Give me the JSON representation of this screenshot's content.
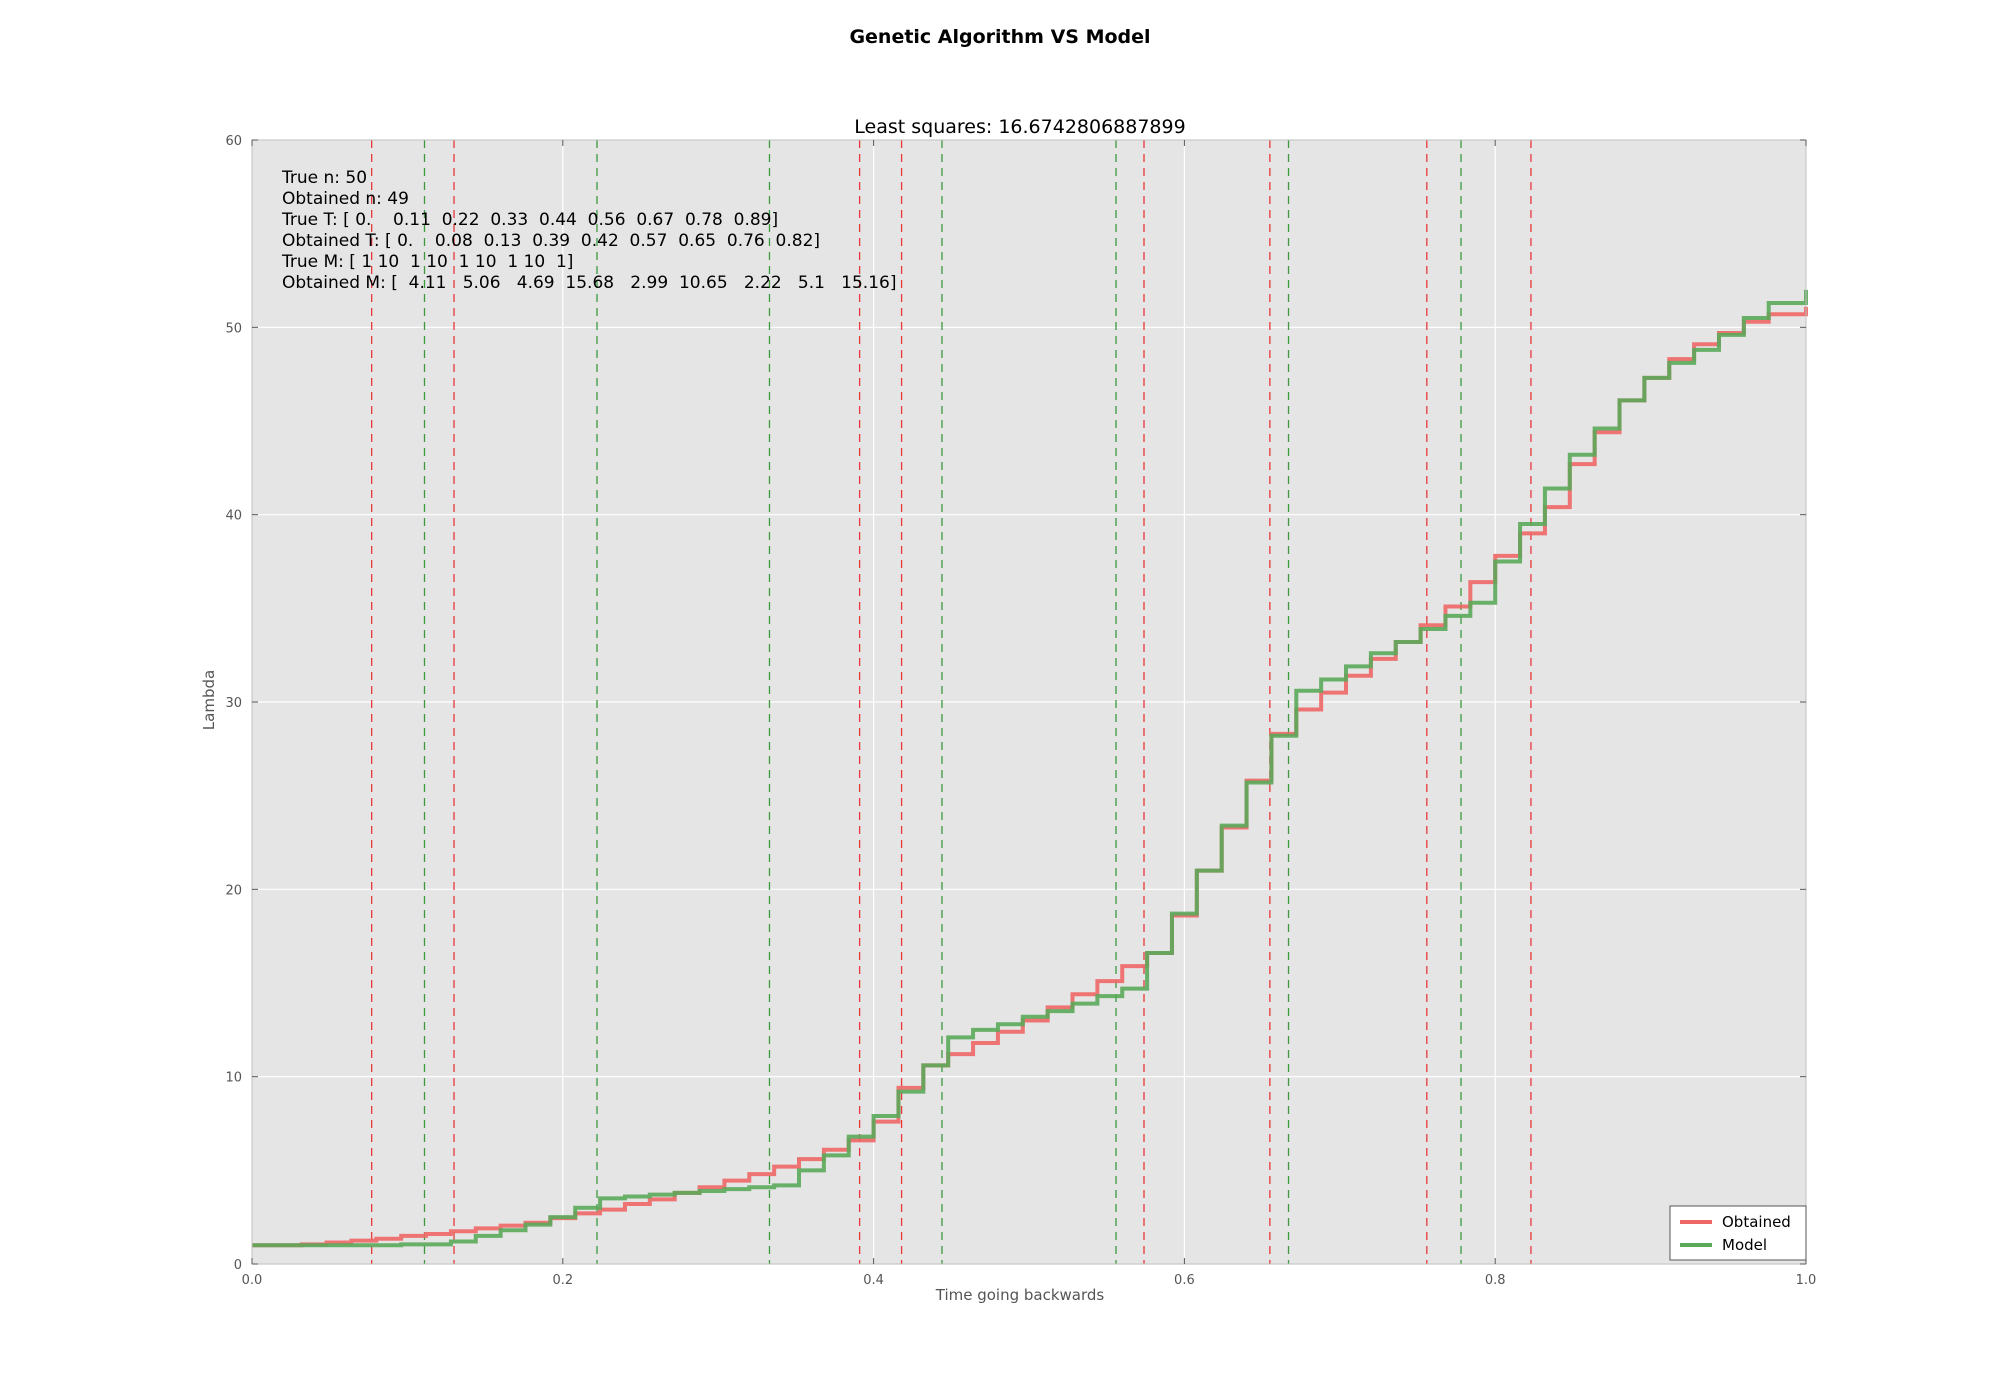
{
  "figure": {
    "suptitle": "Genetic Algorithm VS Model"
  },
  "chart_data": {
    "type": "line",
    "drawstyle": "steps-post",
    "title": "Least squares: 16.6742806887899",
    "xlabel": "Time going backwards",
    "ylabel": "Lambda",
    "xlim": [
      0.0,
      1.0
    ],
    "ylim": [
      0,
      60
    ],
    "xticks": [
      "0.0",
      "0.2",
      "0.4",
      "0.6",
      "0.8",
      "1.0"
    ],
    "yticks": [
      "0",
      "10",
      "20",
      "30",
      "40",
      "50",
      "60"
    ],
    "grid": true,
    "legend_position": "lower-right",
    "background": "#e5e5e5",
    "annotations": [
      "True n: 50",
      "Obtained n: 49",
      "True T: [ 0.    0.11  0.22  0.33  0.44  0.56  0.67  0.78  0.89]",
      "Obtained T: [ 0.    0.08  0.13  0.39  0.42  0.57  0.65  0.76  0.82]",
      "True M: [ 1 10  1 10  1 10  1 10  1]",
      "Obtained M: [  4.11   5.06   4.69  15.68   2.99  10.65   2.22   5.1   15.16]"
    ],
    "vlines": [
      {
        "x": 0.077,
        "color": "#e8383a"
      },
      {
        "x": 0.111,
        "color": "#3d9a3d"
      },
      {
        "x": 0.13,
        "color": "#e8383a"
      },
      {
        "x": 0.222,
        "color": "#3d9a3d"
      },
      {
        "x": 0.333,
        "color": "#3d9a3d"
      },
      {
        "x": 0.391,
        "color": "#e8383a"
      },
      {
        "x": 0.418,
        "color": "#e8383a"
      },
      {
        "x": 0.444,
        "color": "#3d9a3d"
      },
      {
        "x": 0.556,
        "color": "#3d9a3d"
      },
      {
        "x": 0.574,
        "color": "#e8383a"
      },
      {
        "x": 0.655,
        "color": "#e8383a"
      },
      {
        "x": 0.667,
        "color": "#3d9a3d"
      },
      {
        "x": 0.756,
        "color": "#e8383a"
      },
      {
        "x": 0.778,
        "color": "#3d9a3d"
      },
      {
        "x": 0.823,
        "color": "#e8383a"
      }
    ],
    "series": [
      {
        "name": "Obtained",
        "color": "#ee6666",
        "x": [
          0.0,
          0.032,
          0.048,
          0.064,
          0.08,
          0.096,
          0.112,
          0.128,
          0.144,
          0.16,
          0.176,
          0.192,
          0.208,
          0.224,
          0.24,
          0.256,
          0.272,
          0.288,
          0.304,
          0.32,
          0.336,
          0.352,
          0.368,
          0.384,
          0.4,
          0.416,
          0.432,
          0.448,
          0.464,
          0.48,
          0.496,
          0.512,
          0.528,
          0.544,
          0.56,
          0.576,
          0.592,
          0.608,
          0.624,
          0.64,
          0.656,
          0.672,
          0.688,
          0.704,
          0.72,
          0.736,
          0.752,
          0.768,
          0.784,
          0.8,
          0.816,
          0.832,
          0.848,
          0.864,
          0.88,
          0.896,
          0.912,
          0.928,
          0.944,
          0.96,
          0.976,
          1.0
        ],
        "values": [
          1.0,
          1.05,
          1.15,
          1.25,
          1.35,
          1.5,
          1.6,
          1.75,
          1.9,
          2.05,
          2.2,
          2.45,
          2.7,
          2.9,
          3.2,
          3.45,
          3.8,
          4.1,
          4.45,
          4.8,
          5.2,
          5.6,
          6.1,
          6.6,
          7.6,
          9.4,
          10.6,
          11.2,
          11.8,
          12.4,
          13.0,
          13.7,
          14.4,
          15.1,
          15.9,
          16.6,
          18.6,
          21.0,
          23.3,
          25.8,
          28.3,
          29.6,
          30.5,
          31.4,
          32.3,
          33.2,
          34.1,
          35.1,
          36.4,
          37.8,
          39.0,
          40.4,
          42.7,
          44.4,
          46.1,
          47.3,
          48.3,
          49.1,
          49.7,
          50.3,
          50.7,
          51.1
        ]
      },
      {
        "name": "Model",
        "color": "#5aa85a",
        "x": [
          0.0,
          0.032,
          0.048,
          0.064,
          0.08,
          0.096,
          0.112,
          0.128,
          0.144,
          0.16,
          0.176,
          0.192,
          0.208,
          0.224,
          0.24,
          0.256,
          0.272,
          0.288,
          0.304,
          0.32,
          0.336,
          0.352,
          0.368,
          0.384,
          0.4,
          0.416,
          0.432,
          0.448,
          0.464,
          0.48,
          0.496,
          0.512,
          0.528,
          0.544,
          0.56,
          0.576,
          0.592,
          0.608,
          0.624,
          0.64,
          0.656,
          0.672,
          0.688,
          0.704,
          0.72,
          0.736,
          0.752,
          0.768,
          0.784,
          0.8,
          0.816,
          0.832,
          0.848,
          0.864,
          0.88,
          0.896,
          0.912,
          0.928,
          0.944,
          0.96,
          0.976,
          1.0
        ],
        "values": [
          1.0,
          1.0,
          1.0,
          1.0,
          1.0,
          1.05,
          1.05,
          1.2,
          1.5,
          1.8,
          2.1,
          2.5,
          3.0,
          3.5,
          3.6,
          3.7,
          3.8,
          3.9,
          4.0,
          4.1,
          4.2,
          5.0,
          5.8,
          6.8,
          7.9,
          9.2,
          10.6,
          12.1,
          12.5,
          12.8,
          13.2,
          13.5,
          13.9,
          14.3,
          14.7,
          16.6,
          18.7,
          21.0,
          23.4,
          25.7,
          28.2,
          30.6,
          31.2,
          31.9,
          32.6,
          33.2,
          33.9,
          34.6,
          35.3,
          37.5,
          39.5,
          41.4,
          43.2,
          44.6,
          46.1,
          47.3,
          48.1,
          48.8,
          49.6,
          50.5,
          51.3,
          52.0
        ]
      }
    ]
  }
}
